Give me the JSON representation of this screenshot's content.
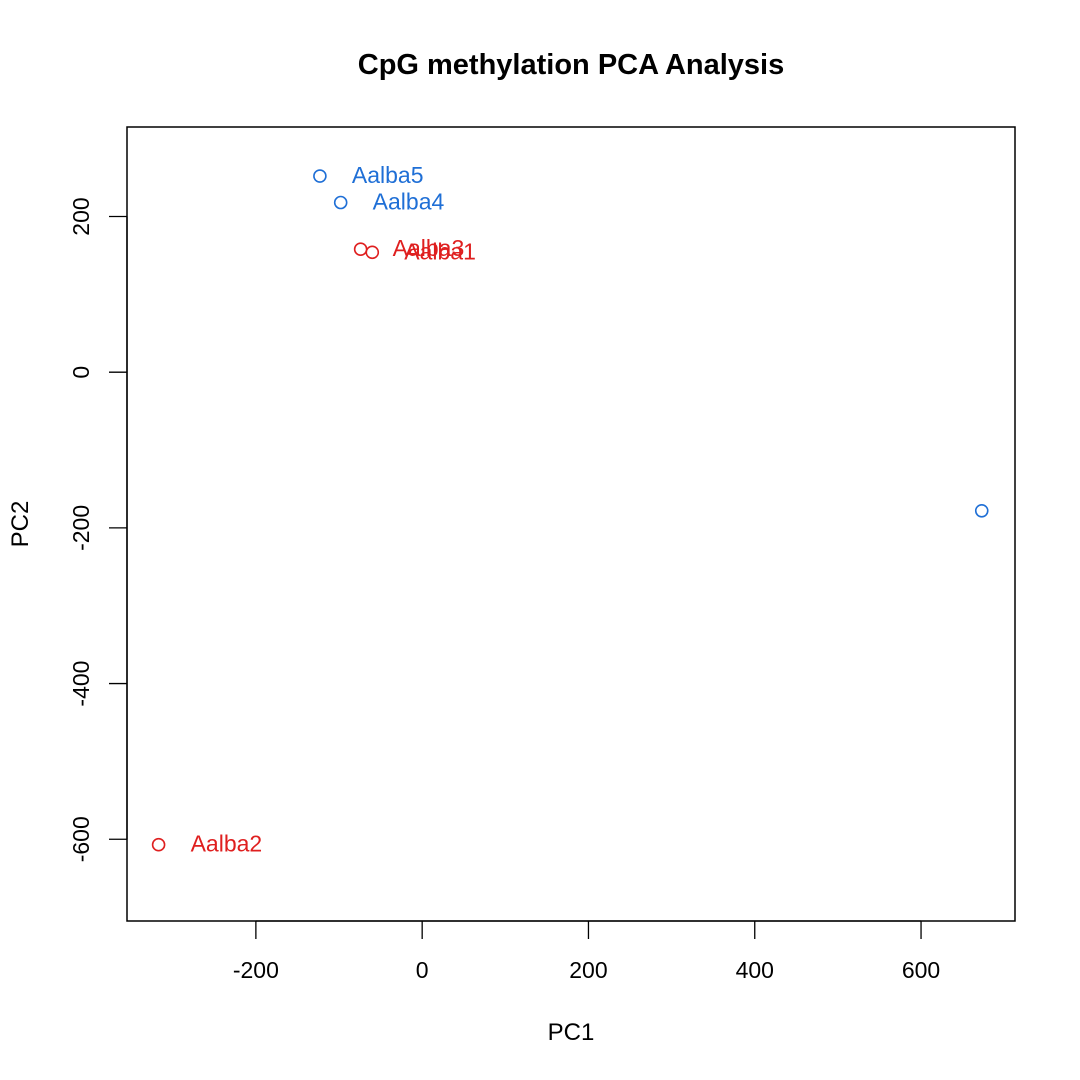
{
  "chart_data": {
    "type": "scatter",
    "title": "CpG methylation PCA Analysis",
    "xlabel": "PC1",
    "ylabel": "PC2",
    "xlim": [
      -355,
      713
    ],
    "ylim": [
      -705,
      315
    ],
    "xticks": [
      -200,
      0,
      200,
      400,
      600
    ],
    "yticks": [
      -600,
      -400,
      -200,
      0,
      200
    ],
    "grid": false,
    "colors": {
      "red": "#DF1F1F",
      "blue": "#1F6FD6"
    },
    "points": [
      {
        "label": "Aalba5",
        "x": -123,
        "y": 252,
        "color": "blue"
      },
      {
        "label": "Aalba4",
        "x": -98,
        "y": 218,
        "color": "blue"
      },
      {
        "label": "Aalba3",
        "x": -74,
        "y": 158,
        "color": "red"
      },
      {
        "label": "Aalba1",
        "x": -60,
        "y": 154,
        "color": "red"
      },
      {
        "label": "Aalba2",
        "x": -317,
        "y": -607,
        "color": "red"
      },
      {
        "label": "",
        "x": 673,
        "y": -178,
        "color": "blue"
      }
    ]
  }
}
